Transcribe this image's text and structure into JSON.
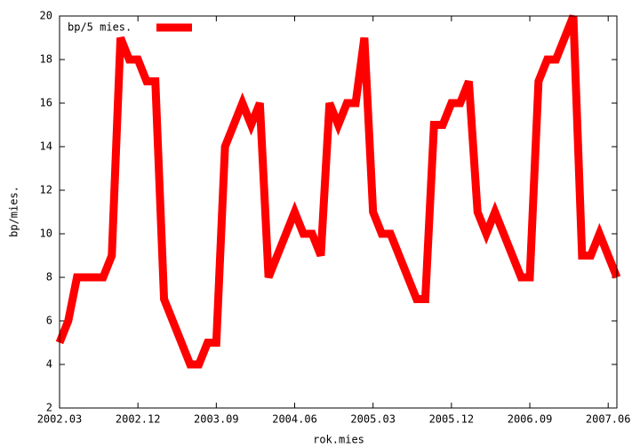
{
  "chart_data": {
    "type": "line",
    "xlabel": "rok.mies",
    "ylabel": "bp/mies.",
    "categories": [
      "2002.03",
      null,
      null,
      null,
      null,
      null,
      null,
      null,
      null,
      "2002.12",
      null,
      null,
      null,
      null,
      null,
      null,
      null,
      null,
      "2003.09",
      null,
      null,
      null,
      null,
      null,
      null,
      null,
      null,
      "2004.06",
      null,
      null,
      null,
      null,
      null,
      null,
      null,
      null,
      "2005.03",
      null,
      null,
      null,
      null,
      null,
      null,
      null,
      null,
      "2005.12",
      null,
      null,
      null,
      null,
      null,
      null,
      null,
      null,
      "2006.09",
      null,
      null,
      null,
      null,
      null,
      null,
      null,
      null,
      "2007.06",
      null
    ],
    "series": [
      {
        "name": "bp/5 mies.",
        "color": "#ff0000",
        "values": [
          5,
          6,
          8,
          8,
          8,
          8,
          9,
          19,
          18,
          18,
          17,
          17,
          7,
          6,
          5,
          4,
          4,
          5,
          5,
          14,
          15,
          16,
          15,
          16,
          8,
          9,
          10,
          11,
          10,
          10,
          9,
          16,
          15,
          16,
          16,
          19,
          11,
          10,
          10,
          9,
          8,
          7,
          7,
          15,
          15,
          16,
          16,
          17,
          11,
          10,
          11,
          10,
          9,
          8,
          8,
          17,
          18,
          18,
          19,
          20,
          9,
          9,
          10,
          9,
          8
        ]
      }
    ],
    "ylim": [
      2,
      20
    ],
    "yticks": [
      2,
      4,
      6,
      8,
      10,
      12,
      14,
      16,
      18,
      20
    ],
    "legend": "top-left"
  }
}
